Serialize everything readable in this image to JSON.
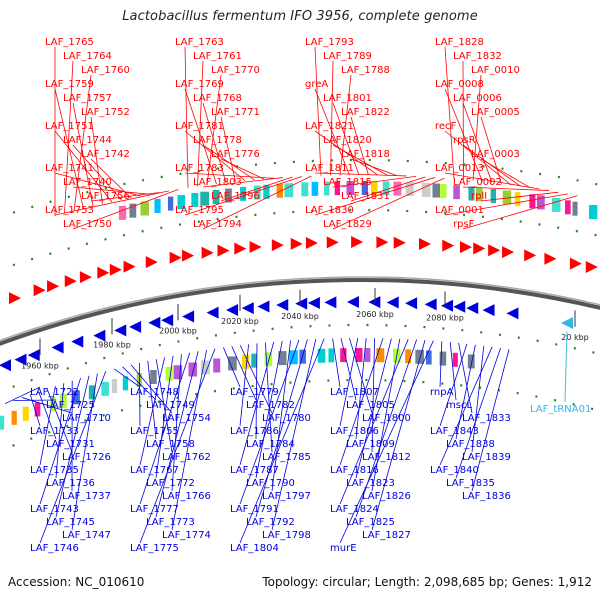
{
  "title": "Lactobacillus fermentum IFO 3956, complete genome",
  "footer": {
    "accession": "Accession: NC_010610",
    "topology": "Topology: circular; Length: 2,098,685 bp; Genes: 1,912"
  },
  "colors": {
    "forward": "#ff0000",
    "reverse": "#0000dd",
    "trna": "#33b5e5",
    "ring": "#777777"
  },
  "ticks": [
    "1960 kbp",
    "1980 kbp",
    "2000 kbp",
    "2020 kbp",
    "2040 kbp",
    "2060 kbp",
    "2080 kbp",
    "20 kbp"
  ],
  "forward_labels": [
    "LAF_1765",
    "LAF_1764",
    "LAF_1760",
    "LAF_1759",
    "LAF_1757",
    "LAF_1752",
    "LAF_1751",
    "LAF_1744",
    "LAF_1742",
    "LAF_1741",
    "LAF_1740",
    "LAF_1756",
    "LAF_1753",
    "LAF_1750",
    "LAF_1763",
    "LAF_1761",
    "LAF_1770",
    "LAF_1769",
    "LAF_1768",
    "LAF_1771",
    "LAF_1781",
    "LAF_1778",
    "LAF_1776",
    "LAF_1783",
    "LAF_1803",
    "LAF_1796",
    "LAF_1795",
    "LAF_1794",
    "LAF_1793",
    "LAF_1789",
    "LAF_1788",
    "greA",
    "LAF_1801",
    "LAF_1822",
    "LAF_1821",
    "LAF_1820",
    "LAF_1818",
    "LAF_1811",
    "LAF_1815",
    "LAF_1831",
    "LAF_1830",
    "LAF_1829",
    "LAF_1828",
    "LAF_1832",
    "LAF_0010",
    "LAF_0008",
    "LAF_0006",
    "LAF_0005",
    "recF",
    "rpsR",
    "LAF_0003",
    "LAF_0013",
    "LAF_0002",
    "rplI",
    "LAF_0001",
    "rpsF"
  ],
  "reverse_labels": [
    "LAF_1722",
    "LAF_1725",
    "LAF_1710",
    "LAF_1733",
    "LAF_1731",
    "LAF_1726",
    "LAF_1735",
    "LAF_1736",
    "LAF_1737",
    "LAF_1743",
    "LAF_1745",
    "LAF_1747",
    "LAF_1746",
    "LAF_1748",
    "LAF_1749",
    "LAF_1754",
    "LAF_1755",
    "LAF_1758",
    "LAF_1762",
    "LAF_1767",
    "LAF_1772",
    "LAF_1766",
    "LAF_1777",
    "LAF_1773",
    "LAF_1774",
    "LAF_1775",
    "LAF_1779",
    "LAF_1782",
    "LAF_1780",
    "LAF_1786",
    "LAF_1784",
    "LAF_1785",
    "LAF_1787",
    "LAF_1790",
    "LAF_1797",
    "LAF_1791",
    "LAF_1792",
    "LAF_1798",
    "LAF_1804",
    "LAF_1807",
    "LAF_1805",
    "LAF_1800",
    "LAF_1806",
    "LAF_1809",
    "LAF_1812",
    "LAF_1816",
    "LAF_1823",
    "LAF_1826",
    "LAF_1824",
    "LAF_1825",
    "LAF_1827",
    "murE",
    "rnpA",
    "mscL",
    "LAF_1833",
    "LAF_1843",
    "LAF_1838",
    "LAF_1839",
    "LAF_1840",
    "LAF_1835",
    "LAF_1836"
  ],
  "trna_labels": [
    "LAF_tRNA01"
  ]
}
